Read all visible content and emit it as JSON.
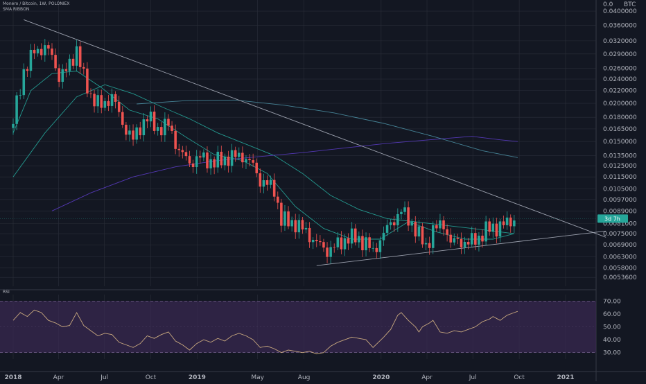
{
  "legend": {
    "title": "Monero / Bitcoin, 1W, POLONIEX",
    "indicator": "SMA RIBBON"
  },
  "rsi_label": "RSI",
  "price_tag": "3d 7h",
  "currency_label": "BTC",
  "colors": {
    "background": "#131722",
    "grid": "#2a2e39",
    "up": "#26a69a",
    "down": "#ef5350",
    "sma_fast": "#26a69a",
    "sma_mid": "#4b8fa3",
    "sma_slow": "#5b3cc4",
    "trendline": "#9ba0ad",
    "rsi_line": "#c9a97f",
    "rsi_band": "#3b2a52",
    "price_tag": "#26a69a"
  },
  "chart_data": [
    {
      "type": "candlestick",
      "symbol": "Monero / Bitcoin",
      "interval": "1W",
      "exchange": "POLONIEX",
      "x_tick_labels": [
        "2018",
        "Apr",
        "Jul",
        "Oct",
        "2019",
        "May",
        "Aug",
        "2020",
        "Apr",
        "Jul",
        "Oct",
        "2021"
      ],
      "x_tick_dates": [
        "2018-01-01",
        "2018-04-01",
        "2018-07-01",
        "2018-10-01",
        "2019-01-01",
        "2019-05-01",
        "2019-08-01",
        "2020-01-01",
        "2020-04-01",
        "2020-07-01",
        "2020-10-01",
        "2021-01-01"
      ],
      "x_bold_ticks": [
        "2018",
        "2019",
        "2020",
        "2021"
      ],
      "x_range": [
        "2018-01-01",
        "2021-03-22"
      ],
      "y_scale": "log",
      "y_ticks": [
        0.04,
        0.036,
        0.032,
        0.029,
        0.026,
        0.024,
        0.022,
        0.02,
        0.018,
        0.0165,
        0.015,
        0.0135,
        0.0125,
        0.0115,
        0.0105,
        0.0097,
        0.0089,
        0.0081,
        0.0075,
        0.0069,
        0.0063,
        0.0058,
        0.0054
      ],
      "y_tick_labels": [
        "0.0400000",
        "0.0360000",
        "0.0320000",
        "0.0290000",
        "0.0260000",
        "0.0240000",
        "0.0220000",
        "0.0200000",
        "0.0180000",
        "0.0165000",
        "0.0150000",
        "0.0135000",
        "0.0125000",
        "0.0115000",
        "0.0105000",
        "0.0097000",
        "0.0089000",
        "0.0081000",
        "0.0075000",
        "0.0069000",
        "0.0063000",
        "0.0058000",
        "0.0053600"
      ],
      "top_axis_label": "0.0",
      "y_range": [
        0.00505,
        0.0435
      ],
      "close_anchors": [
        [
          "2018-01-01",
          0.0175
        ],
        [
          "2018-01-22",
          0.0255
        ],
        [
          "2018-02-12",
          0.0295
        ],
        [
          "2018-03-05",
          0.0305
        ],
        [
          "2018-03-19",
          0.0285
        ],
        [
          "2018-04-02",
          0.0245
        ],
        [
          "2018-04-16",
          0.0255
        ],
        [
          "2018-05-07",
          0.03
        ],
        [
          "2018-05-21",
          0.0242
        ],
        [
          "2018-06-04",
          0.0212
        ],
        [
          "2018-06-25",
          0.0195
        ],
        [
          "2018-07-16",
          0.0212
        ],
        [
          "2018-08-06",
          0.0172
        ],
        [
          "2018-08-27",
          0.0152
        ],
        [
          "2018-09-10",
          0.0168
        ],
        [
          "2018-09-24",
          0.018
        ],
        [
          "2018-10-15",
          0.0165
        ],
        [
          "2018-11-05",
          0.017
        ],
        [
          "2018-11-26",
          0.014
        ],
        [
          "2018-12-17",
          0.0128
        ],
        [
          "2019-01-07",
          0.0133
        ],
        [
          "2019-02-04",
          0.0128
        ],
        [
          "2019-03-04",
          0.0133
        ],
        [
          "2019-04-01",
          0.0135
        ],
        [
          "2019-04-22",
          0.0125
        ],
        [
          "2019-05-06",
          0.0112
        ],
        [
          "2019-06-03",
          0.0105
        ],
        [
          "2019-06-17",
          0.0083
        ],
        [
          "2019-07-15",
          0.0081
        ],
        [
          "2019-08-05",
          0.0076
        ],
        [
          "2019-08-26",
          0.007
        ],
        [
          "2019-09-16",
          0.0066
        ],
        [
          "2019-10-07",
          0.0069
        ],
        [
          "2019-10-28",
          0.0073
        ],
        [
          "2019-11-18",
          0.0072
        ],
        [
          "2019-12-02",
          0.007
        ],
        [
          "2019-12-16",
          0.0065
        ],
        [
          "2019-12-30",
          0.0072
        ],
        [
          "2020-01-20",
          0.0081
        ],
        [
          "2020-02-10",
          0.0089
        ],
        [
          "2020-03-02",
          0.0081
        ],
        [
          "2020-03-16",
          0.0074
        ],
        [
          "2020-03-30",
          0.0068
        ],
        [
          "2020-04-13",
          0.0077
        ],
        [
          "2020-05-04",
          0.0081
        ],
        [
          "2020-05-18",
          0.007
        ],
        [
          "2020-06-01",
          0.0071
        ],
        [
          "2020-06-22",
          0.007
        ],
        [
          "2020-07-13",
          0.0073
        ],
        [
          "2020-07-27",
          0.0077
        ],
        [
          "2020-08-17",
          0.0079
        ],
        [
          "2020-09-07",
          0.0081
        ],
        [
          "2020-09-21",
          0.0084
        ]
      ],
      "sma_ribbon": [
        {
          "points": [
            [
              "2018-01-01",
              0.016
            ],
            [
              "2018-02-05",
              0.022
            ],
            [
              "2018-03-19",
              0.025
            ],
            [
              "2018-05-07",
              0.0255
            ],
            [
              "2018-06-25",
              0.0225
            ],
            [
              "2018-08-20",
              0.019
            ],
            [
              "2018-10-15",
              0.0178
            ],
            [
              "2018-12-10",
              0.0155
            ],
            [
              "2019-02-04",
              0.0136
            ],
            [
              "2019-04-01",
              0.013
            ],
            [
              "2019-05-20",
              0.0118
            ],
            [
              "2019-07-15",
              0.0092
            ],
            [
              "2019-09-09",
              0.0078
            ],
            [
              "2019-11-04",
              0.0072
            ],
            [
              "2019-12-30",
              0.0072
            ],
            [
              "2020-02-24",
              0.0082
            ],
            [
              "2020-04-20",
              0.0076
            ],
            [
              "2020-06-15",
              0.0072
            ],
            [
              "2020-08-10",
              0.0072
            ],
            [
              "2020-09-21",
              0.0075
            ]
          ]
        },
        {
          "points": [
            [
              "2018-01-01",
              0.0115
            ],
            [
              "2018-03-05",
              0.016
            ],
            [
              "2018-05-07",
              0.021
            ],
            [
              "2018-07-02",
              0.023
            ],
            [
              "2018-08-27",
              0.0215
            ],
            [
              "2018-10-22",
              0.0195
            ],
            [
              "2018-12-17",
              0.0178
            ],
            [
              "2019-02-11",
              0.016
            ],
            [
              "2019-04-08",
              0.0147
            ],
            [
              "2019-06-03",
              0.0135
            ],
            [
              "2019-07-29",
              0.0118
            ],
            [
              "2019-09-23",
              0.01
            ],
            [
              "2019-11-18",
              0.009
            ],
            [
              "2020-01-13",
              0.0084
            ],
            [
              "2020-03-09",
              0.0082
            ],
            [
              "2020-05-04",
              0.008
            ],
            [
              "2020-06-29",
              0.0078
            ],
            [
              "2020-08-24",
              0.0076
            ],
            [
              "2020-09-21",
              0.0075
            ]
          ]
        },
        {
          "points": [
            [
              "2018-03-19",
              0.0089
            ],
            [
              "2018-06-04",
              0.0102
            ],
            [
              "2018-08-27",
              0.0115
            ],
            [
              "2018-11-19",
              0.0124
            ],
            [
              "2019-02-11",
              0.013
            ],
            [
              "2019-05-06",
              0.0134
            ],
            [
              "2019-07-29",
              0.0138
            ],
            [
              "2019-10-21",
              0.0143
            ],
            [
              "2020-01-13",
              0.0148
            ],
            [
              "2020-04-06",
              0.0152
            ],
            [
              "2020-06-29",
              0.0156
            ],
            [
              "2020-08-24",
              0.0152
            ],
            [
              "2020-09-28",
              0.015
            ]
          ]
        },
        {
          "points": [
            [
              "2018-09-03",
              0.0199
            ],
            [
              "2018-12-10",
              0.0204
            ],
            [
              "2019-03-18",
              0.0205
            ],
            [
              "2019-06-24",
              0.0197
            ],
            [
              "2019-09-30",
              0.0186
            ],
            [
              "2020-01-06",
              0.0172
            ],
            [
              "2020-04-13",
              0.0156
            ],
            [
              "2020-07-20",
              0.014
            ],
            [
              "2020-09-28",
              0.0133
            ]
          ]
        }
      ],
      "trendlines": [
        {
          "from": [
            "2018-01-22",
            0.0375
          ],
          "to": [
            "2021-03-22",
            0.0073
          ]
        },
        {
          "from": [
            "2019-08-26",
            0.0059
          ],
          "to": [
            "2021-03-22",
            0.00765
          ]
        }
      ],
      "last_price": 0.0084,
      "last_price_label": "3d 7h"
    },
    {
      "type": "line",
      "name": "RSI",
      "y_ticks": [
        30,
        40,
        50,
        60,
        70
      ],
      "y_tick_labels": [
        "30.00",
        "40.00",
        "50.00",
        "60.00",
        "70.00"
      ],
      "y_range": [
        25,
        75
      ],
      "band": [
        30,
        70
      ],
      "points": [
        [
          "2018-01-01",
          55
        ],
        [
          "2018-01-15",
          61
        ],
        [
          "2018-01-29",
          58
        ],
        [
          "2018-02-12",
          63
        ],
        [
          "2018-02-26",
          61
        ],
        [
          "2018-03-12",
          55
        ],
        [
          "2018-03-26",
          53
        ],
        [
          "2018-04-09",
          50
        ],
        [
          "2018-04-23",
          51
        ],
        [
          "2018-05-07",
          61
        ],
        [
          "2018-05-21",
          51
        ],
        [
          "2018-06-04",
          47
        ],
        [
          "2018-06-18",
          43
        ],
        [
          "2018-07-02",
          45
        ],
        [
          "2018-07-16",
          44
        ],
        [
          "2018-07-30",
          38
        ],
        [
          "2018-08-13",
          36
        ],
        [
          "2018-08-27",
          34
        ],
        [
          "2018-09-10",
          37
        ],
        [
          "2018-09-24",
          43
        ],
        [
          "2018-10-08",
          41
        ],
        [
          "2018-10-22",
          44
        ],
        [
          "2018-11-05",
          46
        ],
        [
          "2018-11-19",
          39
        ],
        [
          "2018-12-03",
          36
        ],
        [
          "2018-12-17",
          32
        ],
        [
          "2018-12-31",
          37
        ],
        [
          "2019-01-14",
          40
        ],
        [
          "2019-01-28",
          38
        ],
        [
          "2019-02-11",
          41
        ],
        [
          "2019-02-25",
          39
        ],
        [
          "2019-03-11",
          43
        ],
        [
          "2019-03-25",
          45
        ],
        [
          "2019-04-08",
          43
        ],
        [
          "2019-04-22",
          40
        ],
        [
          "2019-05-06",
          34
        ],
        [
          "2019-05-20",
          35
        ],
        [
          "2019-06-03",
          33
        ],
        [
          "2019-06-17",
          30
        ],
        [
          "2019-07-01",
          32
        ],
        [
          "2019-07-15",
          31
        ],
        [
          "2019-07-29",
          30
        ],
        [
          "2019-08-12",
          31
        ],
        [
          "2019-08-26",
          29
        ],
        [
          "2019-09-09",
          30
        ],
        [
          "2019-09-23",
          35
        ],
        [
          "2019-10-07",
          38
        ],
        [
          "2019-10-21",
          40
        ],
        [
          "2019-11-04",
          42
        ],
        [
          "2019-11-18",
          41
        ],
        [
          "2019-12-02",
          40
        ],
        [
          "2019-12-16",
          34
        ],
        [
          "2020-01-06",
          42
        ],
        [
          "2020-01-20",
          48
        ],
        [
          "2020-02-03",
          59
        ],
        [
          "2020-02-10",
          61
        ],
        [
          "2020-02-24",
          55
        ],
        [
          "2020-03-09",
          50
        ],
        [
          "2020-03-16",
          46
        ],
        [
          "2020-03-23",
          50
        ],
        [
          "2020-04-06",
          53
        ],
        [
          "2020-04-13",
          55
        ],
        [
          "2020-04-27",
          46
        ],
        [
          "2020-05-11",
          45
        ],
        [
          "2020-05-25",
          47
        ],
        [
          "2020-06-08",
          46
        ],
        [
          "2020-06-22",
          48
        ],
        [
          "2020-07-06",
          50
        ],
        [
          "2020-07-20",
          54
        ],
        [
          "2020-08-03",
          56
        ],
        [
          "2020-08-10",
          58
        ],
        [
          "2020-08-24",
          55
        ],
        [
          "2020-09-07",
          59
        ],
        [
          "2020-09-21",
          61
        ],
        [
          "2020-09-28",
          62
        ]
      ]
    }
  ]
}
